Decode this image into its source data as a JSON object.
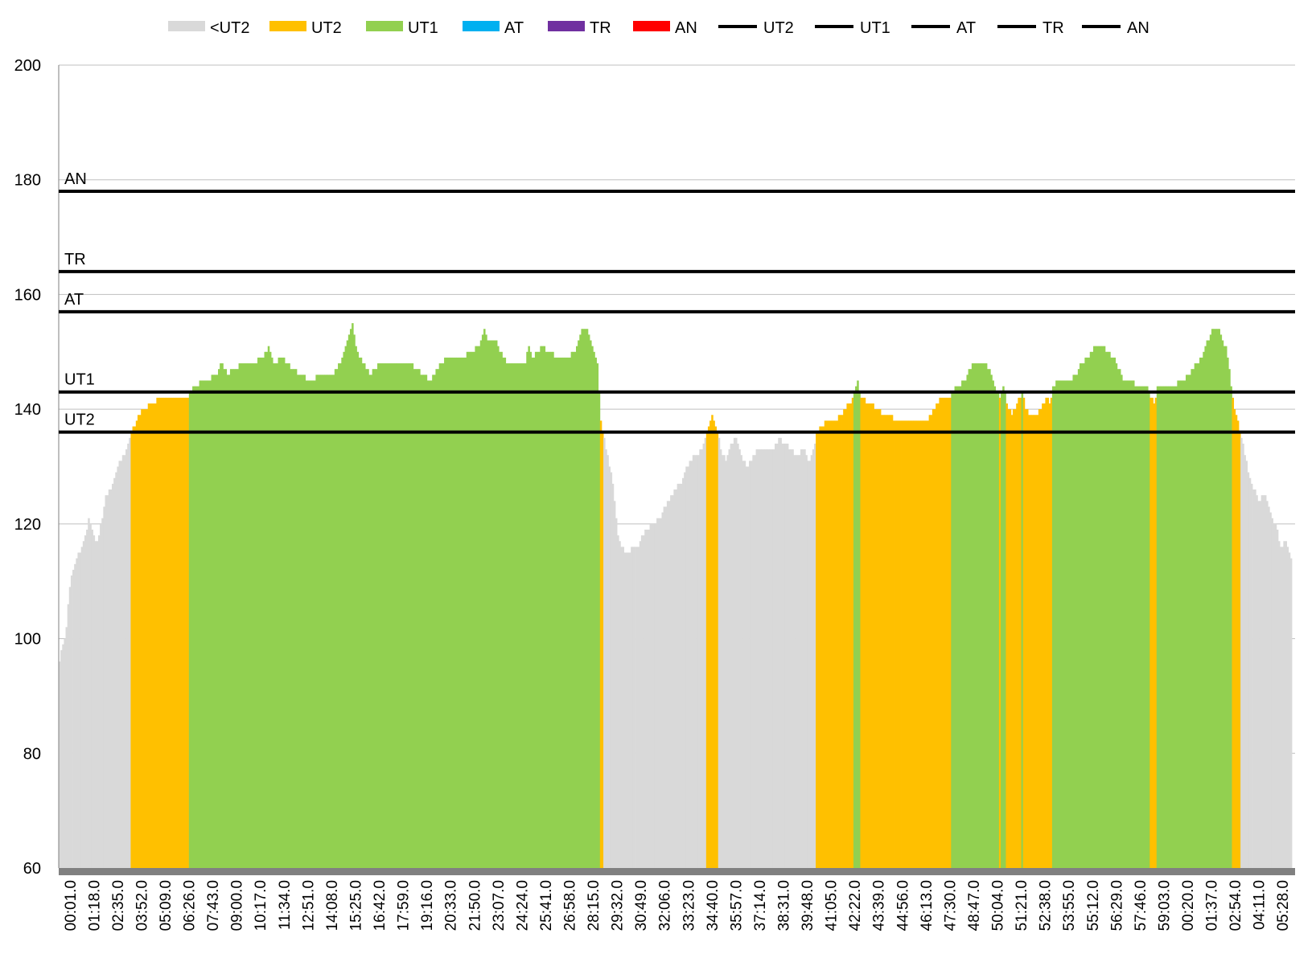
{
  "chart_data": {
    "type": "area",
    "title": "",
    "xlabel": "",
    "ylabel": "",
    "ylim": [
      60,
      200
    ],
    "y_ticks": [
      60,
      80,
      100,
      120,
      140,
      160,
      180,
      200
    ],
    "grid": "horizontal",
    "legend_position": "top",
    "x_tick_labels": [
      "00:01.0",
      "01:18.0",
      "02:35.0",
      "03:52.0",
      "05:09.0",
      "06:26.0",
      "07:43.0",
      "09:00.0",
      "10:17.0",
      "11:34.0",
      "12:51.0",
      "14:08.0",
      "15:25.0",
      "16:42.0",
      "17:59.0",
      "19:16.0",
      "20:33.0",
      "21:50.0",
      "23:07.0",
      "24:24.0",
      "25:41.0",
      "26:58.0",
      "28:15.0",
      "29:32.0",
      "30:49.0",
      "32:06.0",
      "33:23.0",
      "34:40.0",
      "35:57.0",
      "37:14.0",
      "38:31.0",
      "39:48.0",
      "41:05.0",
      "42:22.0",
      "43:39.0",
      "44:56.0",
      "46:13.0",
      "47:30.0",
      "48:47.0",
      "50:04.0",
      "51:21.0",
      "52:38.0",
      "53:55.0",
      "55:12.0",
      "56:29.0",
      "57:46.0",
      "59:03.0",
      "00:20.0",
      "01:37.0",
      "02:54.0",
      "04:11.0",
      "05:28.0"
    ],
    "zone_series": [
      {
        "name": "<UT2",
        "color": "#d9d9d9"
      },
      {
        "name": "UT2",
        "color": "#ffc000"
      },
      {
        "name": "UT1",
        "color": "#92d050"
      },
      {
        "name": "AT",
        "color": "#00b0f0"
      },
      {
        "name": "TR",
        "color": "#7030a0"
      },
      {
        "name": "AN",
        "color": "#ff0000"
      }
    ],
    "threshold_series": [
      {
        "name": "UT2",
        "value": 136
      },
      {
        "name": "UT1",
        "value": 143
      },
      {
        "name": "AT",
        "value": 157
      },
      {
        "name": "TR",
        "value": 164
      },
      {
        "name": "AN",
        "value": 178
      }
    ],
    "heart_rate_profile": [
      [
        0,
        96
      ],
      [
        0.3,
        99
      ],
      [
        0.8,
        101
      ],
      [
        1.0,
        106
      ],
      [
        1.3,
        110
      ],
      [
        1.7,
        112
      ],
      [
        2.3,
        115
      ],
      [
        3.0,
        117
      ],
      [
        3.5,
        121
      ],
      [
        4.0,
        118
      ],
      [
        4.6,
        117
      ],
      [
        5.0,
        120
      ],
      [
        5.6,
        125
      ],
      [
        6.2,
        126
      ],
      [
        6.7,
        129
      ],
      [
        7.3,
        131
      ],
      [
        7.9,
        132
      ],
      [
        8.6,
        136
      ],
      [
        9.3,
        138
      ],
      [
        10.0,
        140
      ],
      [
        11.3,
        141
      ],
      [
        12.0,
        142
      ],
      [
        14.5,
        142
      ],
      [
        15.5,
        142
      ],
      [
        16.0,
        144
      ],
      [
        17.5,
        145
      ],
      [
        18.8,
        146
      ],
      [
        19.5,
        148
      ],
      [
        20.2,
        146
      ],
      [
        21.0,
        147
      ],
      [
        22.0,
        148
      ],
      [
        23.3,
        148
      ],
      [
        24.5,
        149
      ],
      [
        25.2,
        151
      ],
      [
        25.8,
        148
      ],
      [
        26.8,
        149
      ],
      [
        28.0,
        147
      ],
      [
        29.0,
        146
      ],
      [
        30.0,
        145
      ],
      [
        31.5,
        146
      ],
      [
        32.8,
        146
      ],
      [
        33.8,
        148
      ],
      [
        34.6,
        152
      ],
      [
        35.2,
        155
      ],
      [
        35.8,
        150
      ],
      [
        36.5,
        148
      ],
      [
        37.3,
        146
      ],
      [
        38.5,
        148
      ],
      [
        39.5,
        148
      ],
      [
        40.5,
        148
      ],
      [
        42.0,
        148
      ],
      [
        43.0,
        147
      ],
      [
        43.8,
        146
      ],
      [
        44.5,
        145
      ],
      [
        45.5,
        147
      ],
      [
        46.5,
        149
      ],
      [
        47.5,
        149
      ],
      [
        48.5,
        149
      ],
      [
        49.5,
        150
      ],
      [
        50.5,
        151
      ],
      [
        51.0,
        154
      ],
      [
        51.6,
        152
      ],
      [
        52.5,
        152
      ],
      [
        53.0,
        150
      ],
      [
        54.0,
        148
      ],
      [
        55.0,
        148
      ],
      [
        56.0,
        148
      ],
      [
        56.5,
        151
      ],
      [
        57.0,
        149
      ],
      [
        58.0,
        151
      ],
      [
        59.0,
        150
      ],
      [
        60.0,
        149
      ],
      [
        61.0,
        149
      ],
      [
        62.0,
        150
      ],
      [
        62.8,
        154
      ],
      [
        63.5,
        154
      ],
      [
        64.2,
        151
      ],
      [
        64.8,
        147
      ],
      [
        65.0,
        140
      ],
      [
        65.3,
        136
      ],
      [
        65.8,
        133
      ],
      [
        66.5,
        128
      ],
      [
        67.3,
        117
      ],
      [
        68.0,
        115
      ],
      [
        69.5,
        116
      ],
      [
        70.5,
        119
      ],
      [
        71.5,
        120
      ],
      [
        72.2,
        121
      ],
      [
        73.2,
        124
      ],
      [
        74.0,
        126
      ],
      [
        74.8,
        127
      ],
      [
        75.5,
        130
      ],
      [
        76.5,
        132
      ],
      [
        77.3,
        133
      ],
      [
        78.0,
        136
      ],
      [
        78.4,
        139
      ],
      [
        78.8,
        138
      ],
      [
        79.2,
        136
      ],
      [
        79.6,
        133
      ],
      [
        80.2,
        131
      ],
      [
        80.8,
        134
      ],
      [
        81.5,
        135
      ],
      [
        82.2,
        131
      ],
      [
        82.8,
        130
      ],
      [
        83.5,
        132
      ],
      [
        84.2,
        133
      ],
      [
        85.0,
        133
      ],
      [
        86.0,
        133
      ],
      [
        86.6,
        135
      ],
      [
        87.3,
        134
      ],
      [
        88.0,
        133
      ],
      [
        88.8,
        132
      ],
      [
        89.5,
        133
      ],
      [
        90.2,
        131
      ],
      [
        90.8,
        134
      ],
      [
        91.2,
        136
      ],
      [
        91.6,
        137
      ],
      [
        92.5,
        138
      ],
      [
        93.5,
        138
      ],
      [
        94.5,
        140
      ],
      [
        95.5,
        142
      ],
      [
        96.0,
        145
      ],
      [
        96.5,
        142
      ],
      [
        97.5,
        141
      ],
      [
        98.5,
        140
      ],
      [
        99.2,
        139
      ],
      [
        100.0,
        139
      ],
      [
        100.5,
        138
      ],
      [
        101.5,
        138
      ],
      [
        102.5,
        138
      ],
      [
        103.5,
        138
      ],
      [
        104.5,
        138
      ],
      [
        105.3,
        140
      ],
      [
        106.0,
        142
      ],
      [
        107.0,
        142
      ],
      [
        108.0,
        144
      ],
      [
        109.0,
        145
      ],
      [
        109.5,
        147
      ],
      [
        110.0,
        148
      ],
      [
        111.3,
        148
      ],
      [
        112.0,
        147
      ],
      [
        112.5,
        144
      ],
      [
        113.2,
        142
      ],
      [
        113.6,
        144
      ],
      [
        114.0,
        141
      ],
      [
        114.3,
        140
      ],
      [
        114.6,
        139
      ],
      [
        115.0,
        140
      ],
      [
        115.5,
        142
      ],
      [
        115.8,
        143
      ],
      [
        116.3,
        140
      ],
      [
        116.8,
        139
      ],
      [
        117.5,
        139
      ],
      [
        118.0,
        140
      ],
      [
        118.5,
        141
      ],
      [
        118.8,
        143
      ],
      [
        119.2,
        141
      ],
      [
        119.6,
        144
      ],
      [
        120.2,
        145
      ],
      [
        121.0,
        145
      ],
      [
        121.5,
        145
      ],
      [
        122.3,
        146
      ],
      [
        123.0,
        148
      ],
      [
        123.8,
        149
      ],
      [
        124.5,
        151
      ],
      [
        125.5,
        151
      ],
      [
        126.3,
        150
      ],
      [
        126.8,
        149
      ],
      [
        127.5,
        147
      ],
      [
        128.0,
        145
      ],
      [
        129.0,
        145
      ],
      [
        129.8,
        144
      ],
      [
        130.5,
        144
      ],
      [
        131.0,
        144
      ],
      [
        131.3,
        142
      ],
      [
        131.7,
        141
      ],
      [
        132.2,
        144
      ],
      [
        133.0,
        144
      ],
      [
        134.0,
        144
      ],
      [
        135.0,
        145
      ],
      [
        136.0,
        146
      ],
      [
        136.8,
        148
      ],
      [
        137.5,
        149
      ],
      [
        138.2,
        152
      ],
      [
        138.8,
        154
      ],
      [
        139.5,
        154
      ],
      [
        140.0,
        152
      ],
      [
        140.5,
        150
      ],
      [
        141.0,
        144
      ],
      [
        141.4,
        140
      ],
      [
        141.9,
        137
      ],
      [
        142.4,
        134
      ],
      [
        142.9,
        130
      ],
      [
        143.5,
        127
      ],
      [
        144.3,
        124
      ],
      [
        145.0,
        125
      ],
      [
        145.5,
        123
      ],
      [
        146.0,
        121
      ],
      [
        146.5,
        119
      ],
      [
        147.0,
        116
      ],
      [
        147.5,
        117
      ],
      [
        148.0,
        115
      ],
      [
        148.4,
        113
      ]
    ]
  }
}
